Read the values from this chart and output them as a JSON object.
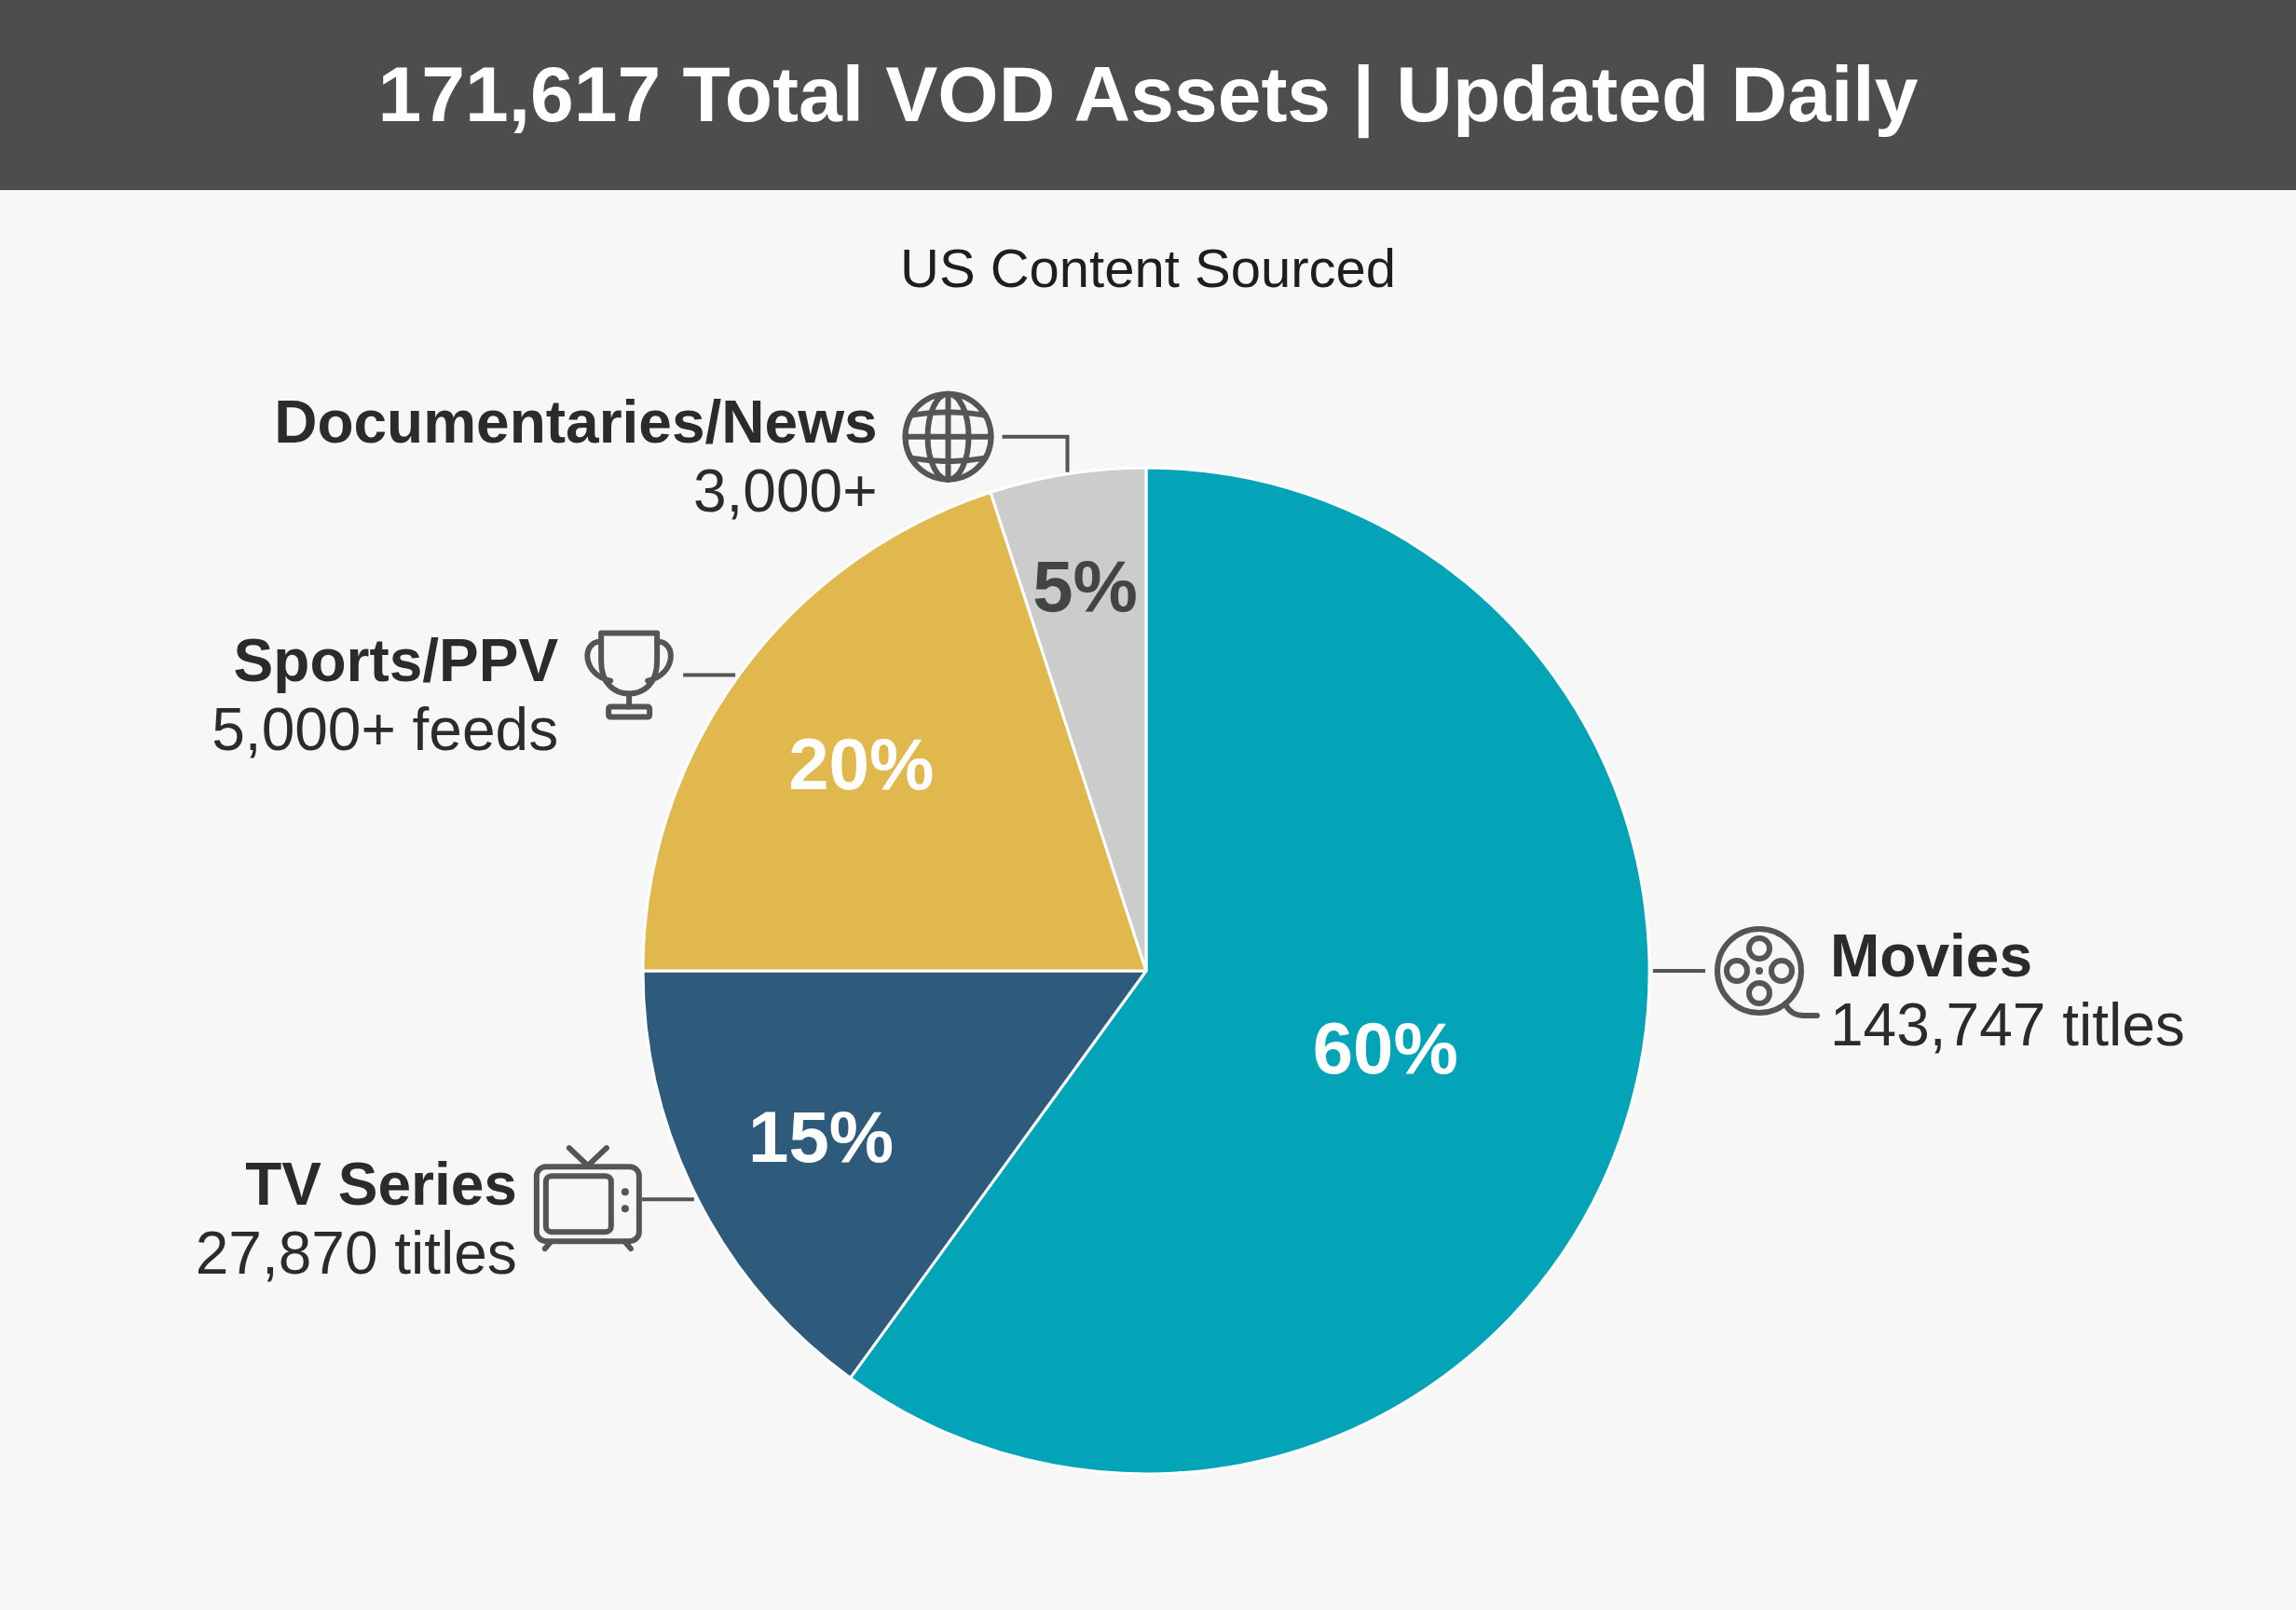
{
  "chart_data": {
    "type": "pie",
    "title": "171,617 Total VOD Assets | Updated Daily",
    "subtitle": "US Content Sourced",
    "categories": [
      "Movies",
      "TV Series",
      "Sports/PPV",
      "Documentaries/News"
    ],
    "values": [
      60,
      15,
      20,
      5
    ],
    "colors": [
      "#03a3b8",
      "#2e5b7c",
      "#e0b84e",
      "#cccccc"
    ],
    "value_labels": [
      "60%",
      "15%",
      "20%",
      "5%"
    ],
    "annotations": [
      {
        "text": "143,747 titles",
        "x": "Movies"
      },
      {
        "text": "27,870 titles",
        "x": "TV Series"
      },
      {
        "text": "5,000+ feeds",
        "x": "Sports/PPV"
      },
      {
        "text": "3,000+",
        "x": "Documentaries/News"
      }
    ]
  }
}
